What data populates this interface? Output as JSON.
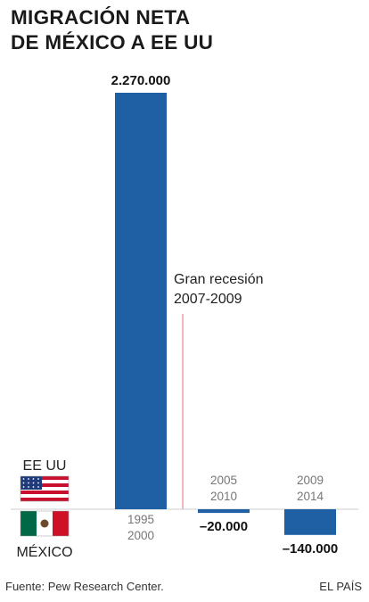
{
  "title_lines": [
    "MIGRACIÓN NETA",
    "DE MÉXICO A EE UU"
  ],
  "chart_data": {
    "type": "bar",
    "categories": [
      [
        "1995",
        "2000"
      ],
      [
        "2005",
        "2010"
      ],
      [
        "2009",
        "2014"
      ]
    ],
    "values": [
      2270000,
      -20000,
      -140000
    ],
    "value_labels": [
      "2.270.000",
      "–20.000",
      "–140.000"
    ],
    "ylim": [
      -160000,
      2320000
    ],
    "grid": false,
    "annotation": {
      "lines": [
        "Gran recesión",
        "2007-2009"
      ],
      "color": "#e8a0a8"
    },
    "country_up": {
      "label": "EE UU",
      "flag": "us-flag-icon"
    },
    "country_down": {
      "label": "MÉXICO",
      "flag": "mexico-flag-icon"
    }
  },
  "colors": {
    "bar": "#1f5fa3",
    "baseline": "#cccccc",
    "category_text": "#777777",
    "label_text": "#111111"
  },
  "footer": {
    "source": "Fuente: Pew Research Center.",
    "brand": "EL PAÍS"
  }
}
